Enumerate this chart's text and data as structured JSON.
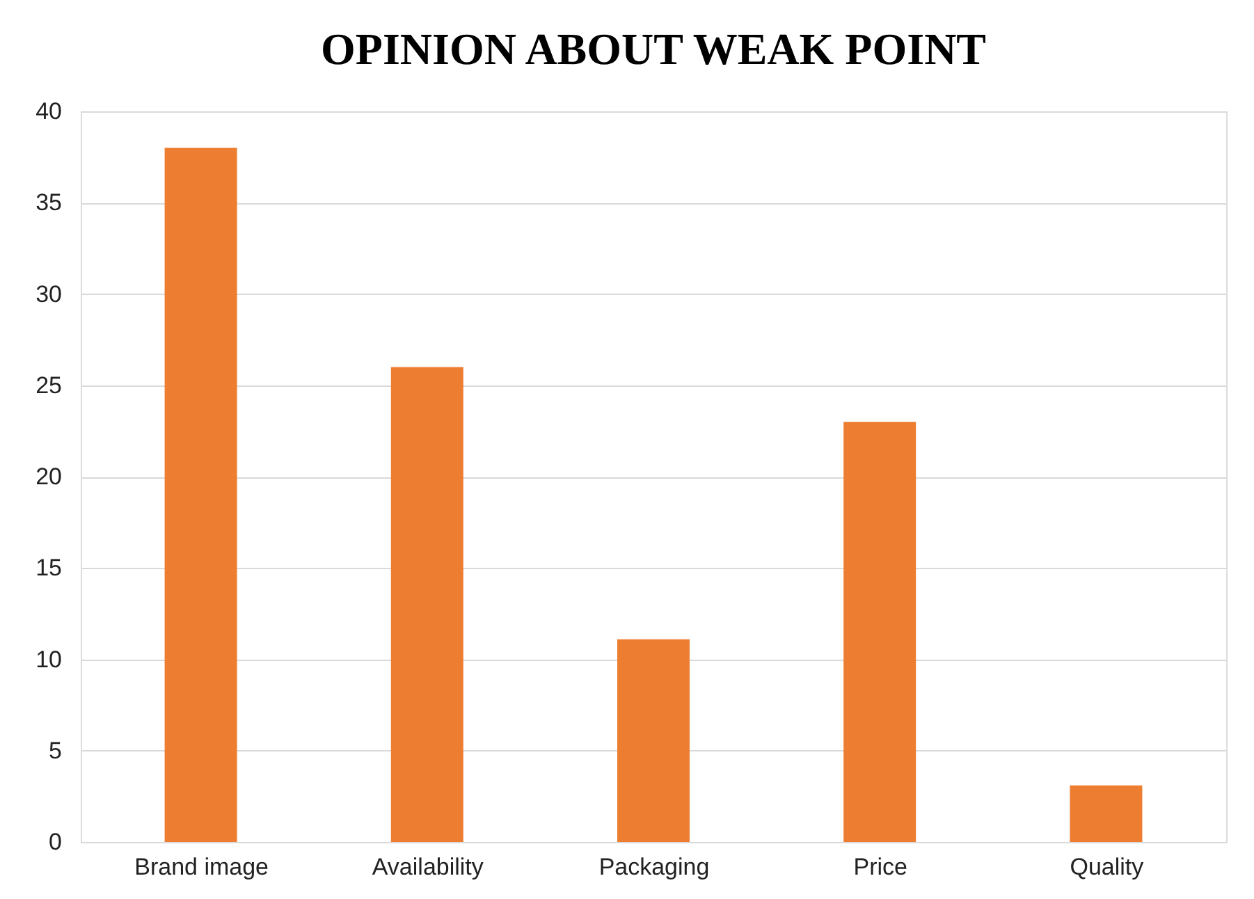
{
  "chart_data": {
    "type": "bar",
    "title": "OPINION ABOUT WEAK POINT",
    "categories": [
      "Brand image",
      "Availability",
      "Packaging",
      "Price",
      "Quality"
    ],
    "values": [
      38,
      26,
      11.1,
      23,
      3.1
    ],
    "color": "#ed7d31",
    "ylim": [
      0,
      40
    ],
    "yticks": [
      0,
      5,
      10,
      15,
      20,
      25,
      30,
      35,
      40
    ],
    "grid": "y"
  }
}
